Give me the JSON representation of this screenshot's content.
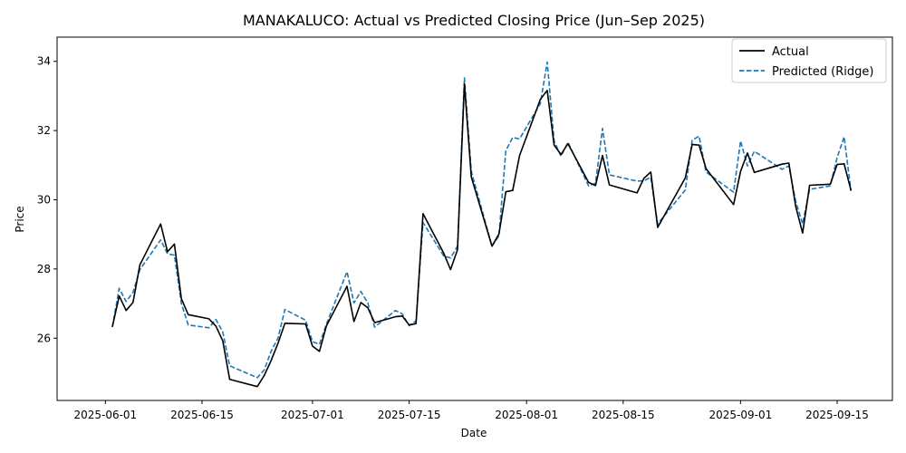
{
  "chart_data": {
    "type": "line",
    "title": "MANAKALUCO: Actual vs Predicted Closing Price (Jun–Sep 2025)",
    "xlabel": "Date",
    "ylabel": "Price",
    "ylim": [
      24.2,
      34.7
    ],
    "xlim": [
      "2025-05-25",
      "2025-09-23"
    ],
    "x_ticks": [
      "2025-06-01",
      "2025-06-15",
      "2025-07-01",
      "2025-07-15",
      "2025-08-01",
      "2025-08-15",
      "2025-09-01",
      "2025-09-15"
    ],
    "y_ticks": [
      26,
      28,
      30,
      32,
      34
    ],
    "grid": false,
    "legend_position": "top-right",
    "x": [
      "2025-06-02",
      "2025-06-03",
      "2025-06-04",
      "2025-06-05",
      "2025-06-06",
      "2025-06-09",
      "2025-06-10",
      "2025-06-11",
      "2025-06-12",
      "2025-06-13",
      "2025-06-16",
      "2025-06-17",
      "2025-06-18",
      "2025-06-19",
      "2025-06-23",
      "2025-06-24",
      "2025-06-25",
      "2025-06-26",
      "2025-06-27",
      "2025-06-30",
      "2025-07-01",
      "2025-07-02",
      "2025-07-03",
      "2025-07-06",
      "2025-07-07",
      "2025-07-08",
      "2025-07-09",
      "2025-07-10",
      "2025-07-13",
      "2025-07-14",
      "2025-07-15",
      "2025-07-16",
      "2025-07-17",
      "2025-07-20",
      "2025-07-21",
      "2025-07-22",
      "2025-07-23",
      "2025-07-24",
      "2025-07-27",
      "2025-07-28",
      "2025-07-29",
      "2025-07-30",
      "2025-07-31",
      "2025-08-03",
      "2025-08-04",
      "2025-08-05",
      "2025-08-06",
      "2025-08-07",
      "2025-08-10",
      "2025-08-11",
      "2025-08-12",
      "2025-08-13",
      "2025-08-17",
      "2025-08-18",
      "2025-08-19",
      "2025-08-20",
      "2025-08-24",
      "2025-08-25",
      "2025-08-26",
      "2025-08-27",
      "2025-08-31",
      "2025-09-01",
      "2025-09-02",
      "2025-09-03",
      "2025-09-07",
      "2025-09-08",
      "2025-09-09",
      "2025-09-10",
      "2025-09-11",
      "2025-09-14",
      "2025-09-15",
      "2025-09-16",
      "2025-09-17"
    ],
    "series": [
      {
        "name": "Actual",
        "color": "#000000",
        "style": "solid",
        "values": [
          26.33,
          27.22,
          26.8,
          27.03,
          28.12,
          29.3,
          28.5,
          28.72,
          27.14,
          26.68,
          26.56,
          26.35,
          25.92,
          24.81,
          24.6,
          24.92,
          25.35,
          25.85,
          26.43,
          26.41,
          25.77,
          25.62,
          26.35,
          27.5,
          26.48,
          27.03,
          26.88,
          26.45,
          26.62,
          26.64,
          26.38,
          26.42,
          29.6,
          28.46,
          27.98,
          28.56,
          33.35,
          30.66,
          28.66,
          29.01,
          30.23,
          30.27,
          31.28,
          32.9,
          33.16,
          31.58,
          31.31,
          31.62,
          30.5,
          30.41,
          31.28,
          30.43,
          30.2,
          30.62,
          30.8,
          29.2,
          30.63,
          31.6,
          31.58,
          30.9,
          29.86,
          30.82,
          31.35,
          30.79,
          31.03,
          31.06,
          29.8,
          29.04,
          30.42,
          30.45,
          31.02,
          31.04,
          30.27
        ]
      },
      {
        "name": "Predicted (Ridge)",
        "color": "#1f77b4",
        "style": "dashed",
        "values": [
          26.32,
          27.44,
          27.06,
          27.32,
          27.98,
          28.84,
          28.44,
          28.4,
          27.0,
          26.38,
          26.3,
          26.54,
          26.18,
          25.2,
          24.86,
          25.08,
          25.62,
          26.0,
          26.83,
          26.52,
          25.9,
          25.82,
          26.4,
          27.92,
          27.02,
          27.35,
          27.02,
          26.32,
          26.8,
          26.7,
          26.36,
          26.5,
          29.34,
          28.38,
          28.32,
          28.66,
          33.52,
          30.82,
          28.66,
          28.96,
          31.42,
          31.8,
          31.76,
          32.78,
          33.98,
          31.7,
          31.26,
          31.66,
          30.4,
          30.48,
          32.06,
          30.72,
          30.54,
          30.55,
          30.65,
          29.3,
          30.28,
          31.72,
          31.84,
          30.8,
          30.22,
          31.7,
          30.98,
          31.4,
          30.88,
          30.98,
          29.95,
          29.3,
          30.3,
          30.4,
          31.22,
          31.82,
          30.25
        ]
      }
    ]
  }
}
